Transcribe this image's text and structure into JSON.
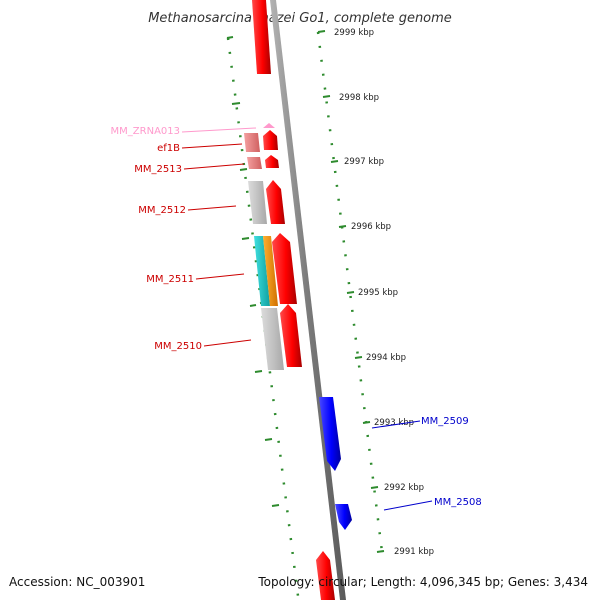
{
  "title": "Methanosarcina mazei Go1, complete genome",
  "accession": "Accession: NC_003901",
  "topology": "Topology: circular; Length: 4,096,345 bp; Genes: 3,434",
  "colors": {
    "backbone": "#8c8c8c",
    "forward_cds": "#ff0000",
    "reverse_cds": "#0000ff",
    "rna": "#ff99cc",
    "tick": "#2e8b2e",
    "grey_feature": "#c0c0c0",
    "cyan_feature": "#20c0c0",
    "orange_feature": "#ff9900",
    "pink_feature": "#e87878"
  },
  "ticks": [
    {
      "label": "2999 kbp"
    },
    {
      "label": "2998 kbp"
    },
    {
      "label": "2997 kbp"
    },
    {
      "label": "2996 kbp"
    },
    {
      "label": "2995 kbp"
    },
    {
      "label": "2994 kbp"
    },
    {
      "label": "2993 kbp"
    },
    {
      "label": "2992 kbp"
    },
    {
      "label": "2991 kbp"
    }
  ],
  "gene_labels": [
    {
      "text": "MM_ZRNA013",
      "color": "#ff99cc"
    },
    {
      "text": "ef1B",
      "color": "#cc0000"
    },
    {
      "text": "MM_2513",
      "color": "#cc0000"
    },
    {
      "text": "MM_2512",
      "color": "#cc0000"
    },
    {
      "text": "MM_2511",
      "color": "#cc0000"
    },
    {
      "text": "MM_2510",
      "color": "#cc0000"
    },
    {
      "text": "MM_2509",
      "color": "#0000cc"
    },
    {
      "text": "MM_2508",
      "color": "#0000cc"
    }
  ]
}
